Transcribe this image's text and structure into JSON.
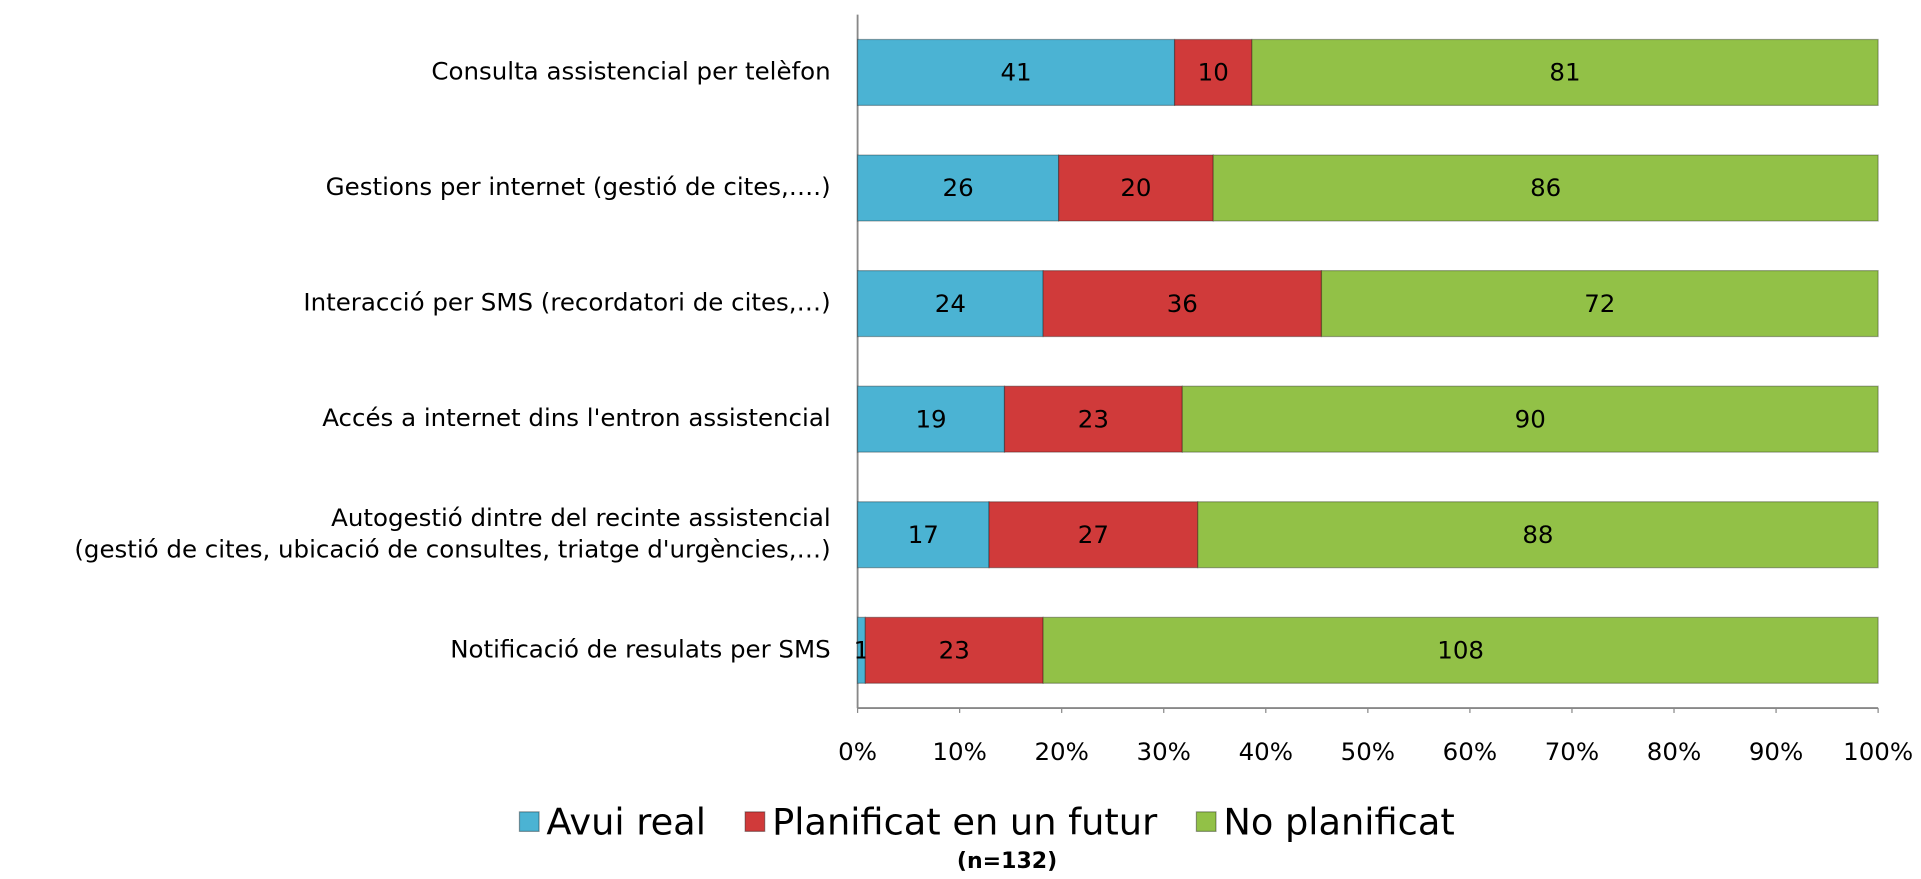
{
  "chart_data": {
    "type": "bar",
    "orientation": "horizontal",
    "stacking": "percent",
    "categories": [
      "Consulta assistencial per telèfon",
      "Gestions per internet (gestió de cites,….)",
      "Interacció per SMS (recordatori de cites,…)",
      "Accés a internet dins l'entron assistencial",
      "Autogestió dintre del recinte assistencial\n(gestió de cites, ubicació de consultes, triatge d'urgències,…)",
      "Notificació de resulats per SMS"
    ],
    "series": [
      {
        "name": "Avui real",
        "color": "#4bb3d3",
        "values": [
          41,
          26,
          24,
          19,
          17,
          1
        ]
      },
      {
        "name": "Planificat en un futur",
        "color": "#d03a3a",
        "values": [
          10,
          20,
          36,
          23,
          27,
          23
        ]
      },
      {
        "name": "No planificat",
        "color": "#92c147",
        "values": [
          81,
          86,
          72,
          90,
          88,
          108
        ]
      }
    ],
    "xlim": [
      0,
      100
    ],
    "xticks": [
      {
        "value": 0,
        "label": "0%"
      },
      {
        "value": 10,
        "label": "10%"
      },
      {
        "value": 20,
        "label": "20%"
      },
      {
        "value": 30,
        "label": "30%"
      },
      {
        "value": 40,
        "label": "40%"
      },
      {
        "value": 50,
        "label": "50%"
      },
      {
        "value": 60,
        "label": "60%"
      },
      {
        "value": 70,
        "label": "70%"
      },
      {
        "value": 80,
        "label": "80%"
      },
      {
        "value": 90,
        "label": "90%"
      },
      {
        "value": 100,
        "label": "100%"
      }
    ],
    "legend": "bottom",
    "note": "(n=132)"
  }
}
